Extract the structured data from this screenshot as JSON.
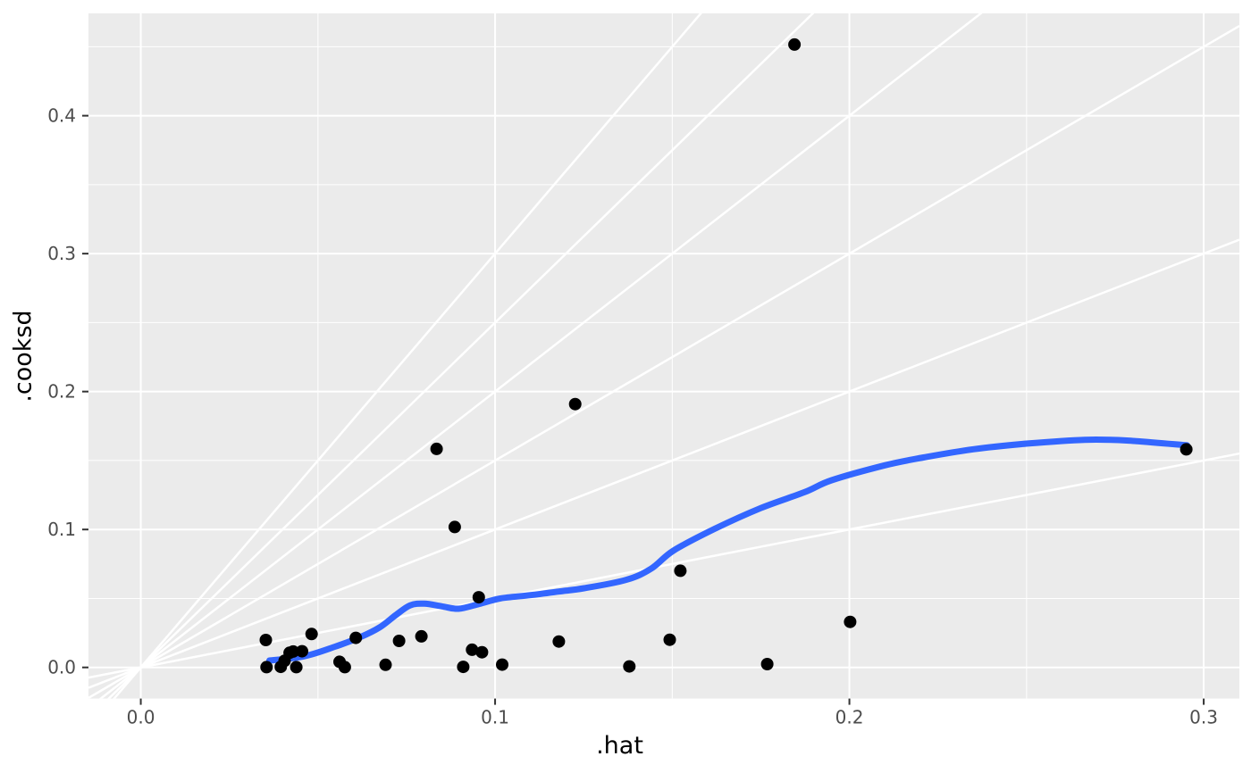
{
  "chart_data": {
    "type": "scatter",
    "xlabel": ".hat",
    "ylabel": ".cooksd",
    "x_domain": [
      -0.01477,
      0.31007
    ],
    "y_domain": [
      -0.02258,
      0.47418
    ],
    "x_ticks": {
      "values": [
        0.0,
        0.1,
        0.2,
        0.3
      ],
      "labels": [
        "0.0",
        "0.1",
        "0.2",
        "0.3"
      ]
    },
    "y_ticks": {
      "values": [
        0.0,
        0.1,
        0.2,
        0.3,
        0.4
      ],
      "labels": [
        "0.0",
        "0.1",
        "0.2",
        "0.3",
        "0.4"
      ]
    },
    "x_minor": [
      0.05,
      0.15,
      0.25
    ],
    "y_minor": [
      0.05,
      0.15,
      0.25,
      0.35,
      0.45
    ],
    "abline_slopes": [
      0.5,
      1.0,
      1.5,
      2.0,
      2.5,
      3.0
    ],
    "grid": true,
    "legend": "none",
    "points": [
      [
        0.0353,
        0.0199
      ],
      [
        0.0355,
        0.0002
      ],
      [
        0.0395,
        0.0004
      ],
      [
        0.0406,
        0.0048
      ],
      [
        0.042,
        0.0106
      ],
      [
        0.043,
        0.0115
      ],
      [
        0.0439,
        0.0002
      ],
      [
        0.0455,
        0.0117
      ],
      [
        0.0482,
        0.0242
      ],
      [
        0.0561,
        0.0041
      ],
      [
        0.0576,
        0.0002
      ],
      [
        0.0607,
        0.0214
      ],
      [
        0.0691,
        0.0019
      ],
      [
        0.0729,
        0.0192
      ],
      [
        0.0792,
        0.0225
      ],
      [
        0.0835,
        0.1584
      ],
      [
        0.0886,
        0.1018
      ],
      [
        0.091,
        0.0004
      ],
      [
        0.0935,
        0.0128
      ],
      [
        0.0954,
        0.0509
      ],
      [
        0.0963,
        0.011
      ],
      [
        0.102,
        0.002
      ],
      [
        0.118,
        0.0188
      ],
      [
        0.1226,
        0.1909
      ],
      [
        0.1379,
        0.0007
      ],
      [
        0.1493,
        0.0201
      ],
      [
        0.1523,
        0.0701
      ],
      [
        0.1768,
        0.0024
      ],
      [
        0.1845,
        0.4516
      ],
      [
        0.2002,
        0.033
      ],
      [
        0.2951,
        0.1581
      ]
    ],
    "smooth": {
      "name": "loess-smooth",
      "points": [
        [
          0.0363,
          0.005
        ],
        [
          0.046,
          0.008
        ],
        [
          0.0548,
          0.015
        ],
        [
          0.062,
          0.022
        ],
        [
          0.0674,
          0.029
        ],
        [
          0.072,
          0.038
        ],
        [
          0.076,
          0.045
        ],
        [
          0.08,
          0.0462
        ],
        [
          0.085,
          0.0443
        ],
        [
          0.0897,
          0.0425
        ],
        [
          0.0955,
          0.046
        ],
        [
          0.1015,
          0.05
        ],
        [
          0.11,
          0.0524
        ],
        [
          0.118,
          0.055
        ],
        [
          0.1251,
          0.0574
        ],
        [
          0.1369,
          0.0634
        ],
        [
          0.144,
          0.0715
        ],
        [
          0.1503,
          0.0846
        ],
        [
          0.162,
          0.1005
        ],
        [
          0.175,
          0.1155
        ],
        [
          0.1874,
          0.1271
        ],
        [
          0.195,
          0.1357
        ],
        [
          0.21,
          0.1465
        ],
        [
          0.2202,
          0.1519
        ],
        [
          0.235,
          0.1582
        ],
        [
          0.2503,
          0.1623
        ],
        [
          0.2664,
          0.165
        ],
        [
          0.2783,
          0.1645
        ],
        [
          0.2953,
          0.161
        ]
      ]
    },
    "colors": {
      "figure_bg": "#FFFFFF",
      "panel_bg": "#EBEBEB",
      "grid": "#FFFFFF",
      "abline": "#FFFFFF",
      "point": "#000000",
      "smooth": "#3366FF",
      "axis_text": "#4D4D4D",
      "axis_title": "#000000",
      "tick_mark": "#333333"
    }
  }
}
